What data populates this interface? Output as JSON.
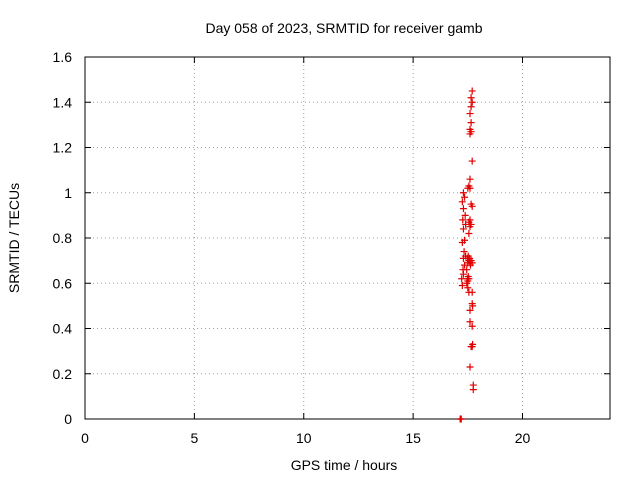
{
  "chart_data": {
    "type": "scatter",
    "title": "Day 058 of 2023, SRMTID for receiver gamb",
    "xlabel": "GPS time / hours",
    "ylabel": "SRMTID / TECUs",
    "xlim": [
      0,
      24
    ],
    "ylim": [
      0,
      1.6
    ],
    "xticks": [
      0,
      5,
      10,
      15,
      20
    ],
    "yticks": [
      0,
      0.2,
      0.4,
      0.6,
      0.8,
      1.0,
      1.2,
      1.4,
      1.6
    ],
    "xtick_labels": [
      "0",
      "5",
      "10",
      "15",
      "20"
    ],
    "ytick_labels": [
      "0",
      "0.2",
      "0.4",
      "0.6",
      "0.8",
      "1",
      "1.2",
      "1.4",
      "1.6"
    ],
    "grid": true,
    "legend": "none",
    "marker": "plus",
    "color": "#e00000",
    "series": [
      {
        "points": [
          [
            17.15,
            0.0
          ],
          [
            17.2,
            0.0
          ],
          [
            17.17,
            0.0
          ],
          [
            17.25,
            0.59
          ],
          [
            17.22,
            0.62
          ],
          [
            17.3,
            0.64
          ],
          [
            17.28,
            0.66
          ],
          [
            17.35,
            0.68
          ],
          [
            17.3,
            0.71
          ],
          [
            17.4,
            0.72
          ],
          [
            17.33,
            0.74
          ],
          [
            17.25,
            0.78
          ],
          [
            17.35,
            0.79
          ],
          [
            17.3,
            0.84
          ],
          [
            17.27,
            0.88
          ],
          [
            17.4,
            0.86
          ],
          [
            17.38,
            0.9
          ],
          [
            17.3,
            0.93
          ],
          [
            17.25,
            0.96
          ],
          [
            17.35,
            0.98
          ],
          [
            17.3,
            1.0
          ],
          [
            17.45,
            0.6
          ],
          [
            17.48,
            0.62
          ],
          [
            17.5,
            0.61
          ],
          [
            17.52,
            0.63
          ],
          [
            17.55,
            0.62
          ],
          [
            17.45,
            0.66
          ],
          [
            17.5,
            0.69
          ],
          [
            17.55,
            0.7
          ],
          [
            17.48,
            0.71
          ],
          [
            17.52,
            0.72
          ],
          [
            17.6,
            0.69
          ],
          [
            17.65,
            0.7
          ],
          [
            17.58,
            0.71
          ],
          [
            17.62,
            0.68
          ],
          [
            17.7,
            0.69
          ],
          [
            17.5,
            0.58
          ],
          [
            17.55,
            0.56
          ],
          [
            17.55,
            0.82
          ],
          [
            17.6,
            0.85
          ],
          [
            17.55,
            0.87
          ],
          [
            17.6,
            0.88
          ],
          [
            17.65,
            0.86
          ],
          [
            17.5,
            1.02
          ],
          [
            17.55,
            1.03
          ],
          [
            17.6,
            1.02
          ],
          [
            17.6,
            1.06
          ],
          [
            17.65,
            0.95
          ],
          [
            17.7,
            0.94
          ],
          [
            17.7,
            0.56
          ],
          [
            17.72,
            0.5
          ],
          [
            17.7,
            0.51
          ],
          [
            17.6,
            0.48
          ],
          [
            17.6,
            0.43
          ],
          [
            17.7,
            0.41
          ],
          [
            17.65,
            0.32
          ],
          [
            17.7,
            0.32
          ],
          [
            17.72,
            0.33
          ],
          [
            17.6,
            0.23
          ],
          [
            17.75,
            0.15
          ],
          [
            17.75,
            0.13
          ],
          [
            17.7,
            1.14
          ],
          [
            17.6,
            1.26
          ],
          [
            17.65,
            1.27
          ],
          [
            17.6,
            1.28
          ],
          [
            17.65,
            1.31
          ],
          [
            17.6,
            1.35
          ],
          [
            17.65,
            1.38
          ],
          [
            17.7,
            1.4
          ],
          [
            17.65,
            1.42
          ],
          [
            17.7,
            1.45
          ]
        ]
      }
    ]
  }
}
